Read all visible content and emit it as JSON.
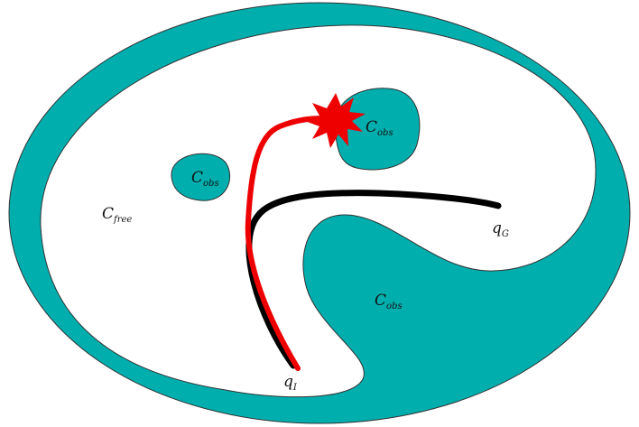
{
  "labels": [
    {
      "symbol": "C",
      "subscript": "obs"
    },
    {
      "symbol": "C",
      "subscript": "obs"
    },
    {
      "symbol": "C",
      "subscript": "obs"
    },
    {
      "symbol": "C",
      "subscript": "free"
    },
    {
      "symbol": "q",
      "subscript": "G"
    },
    {
      "symbol": "q",
      "subscript": "I"
    }
  ]
}
